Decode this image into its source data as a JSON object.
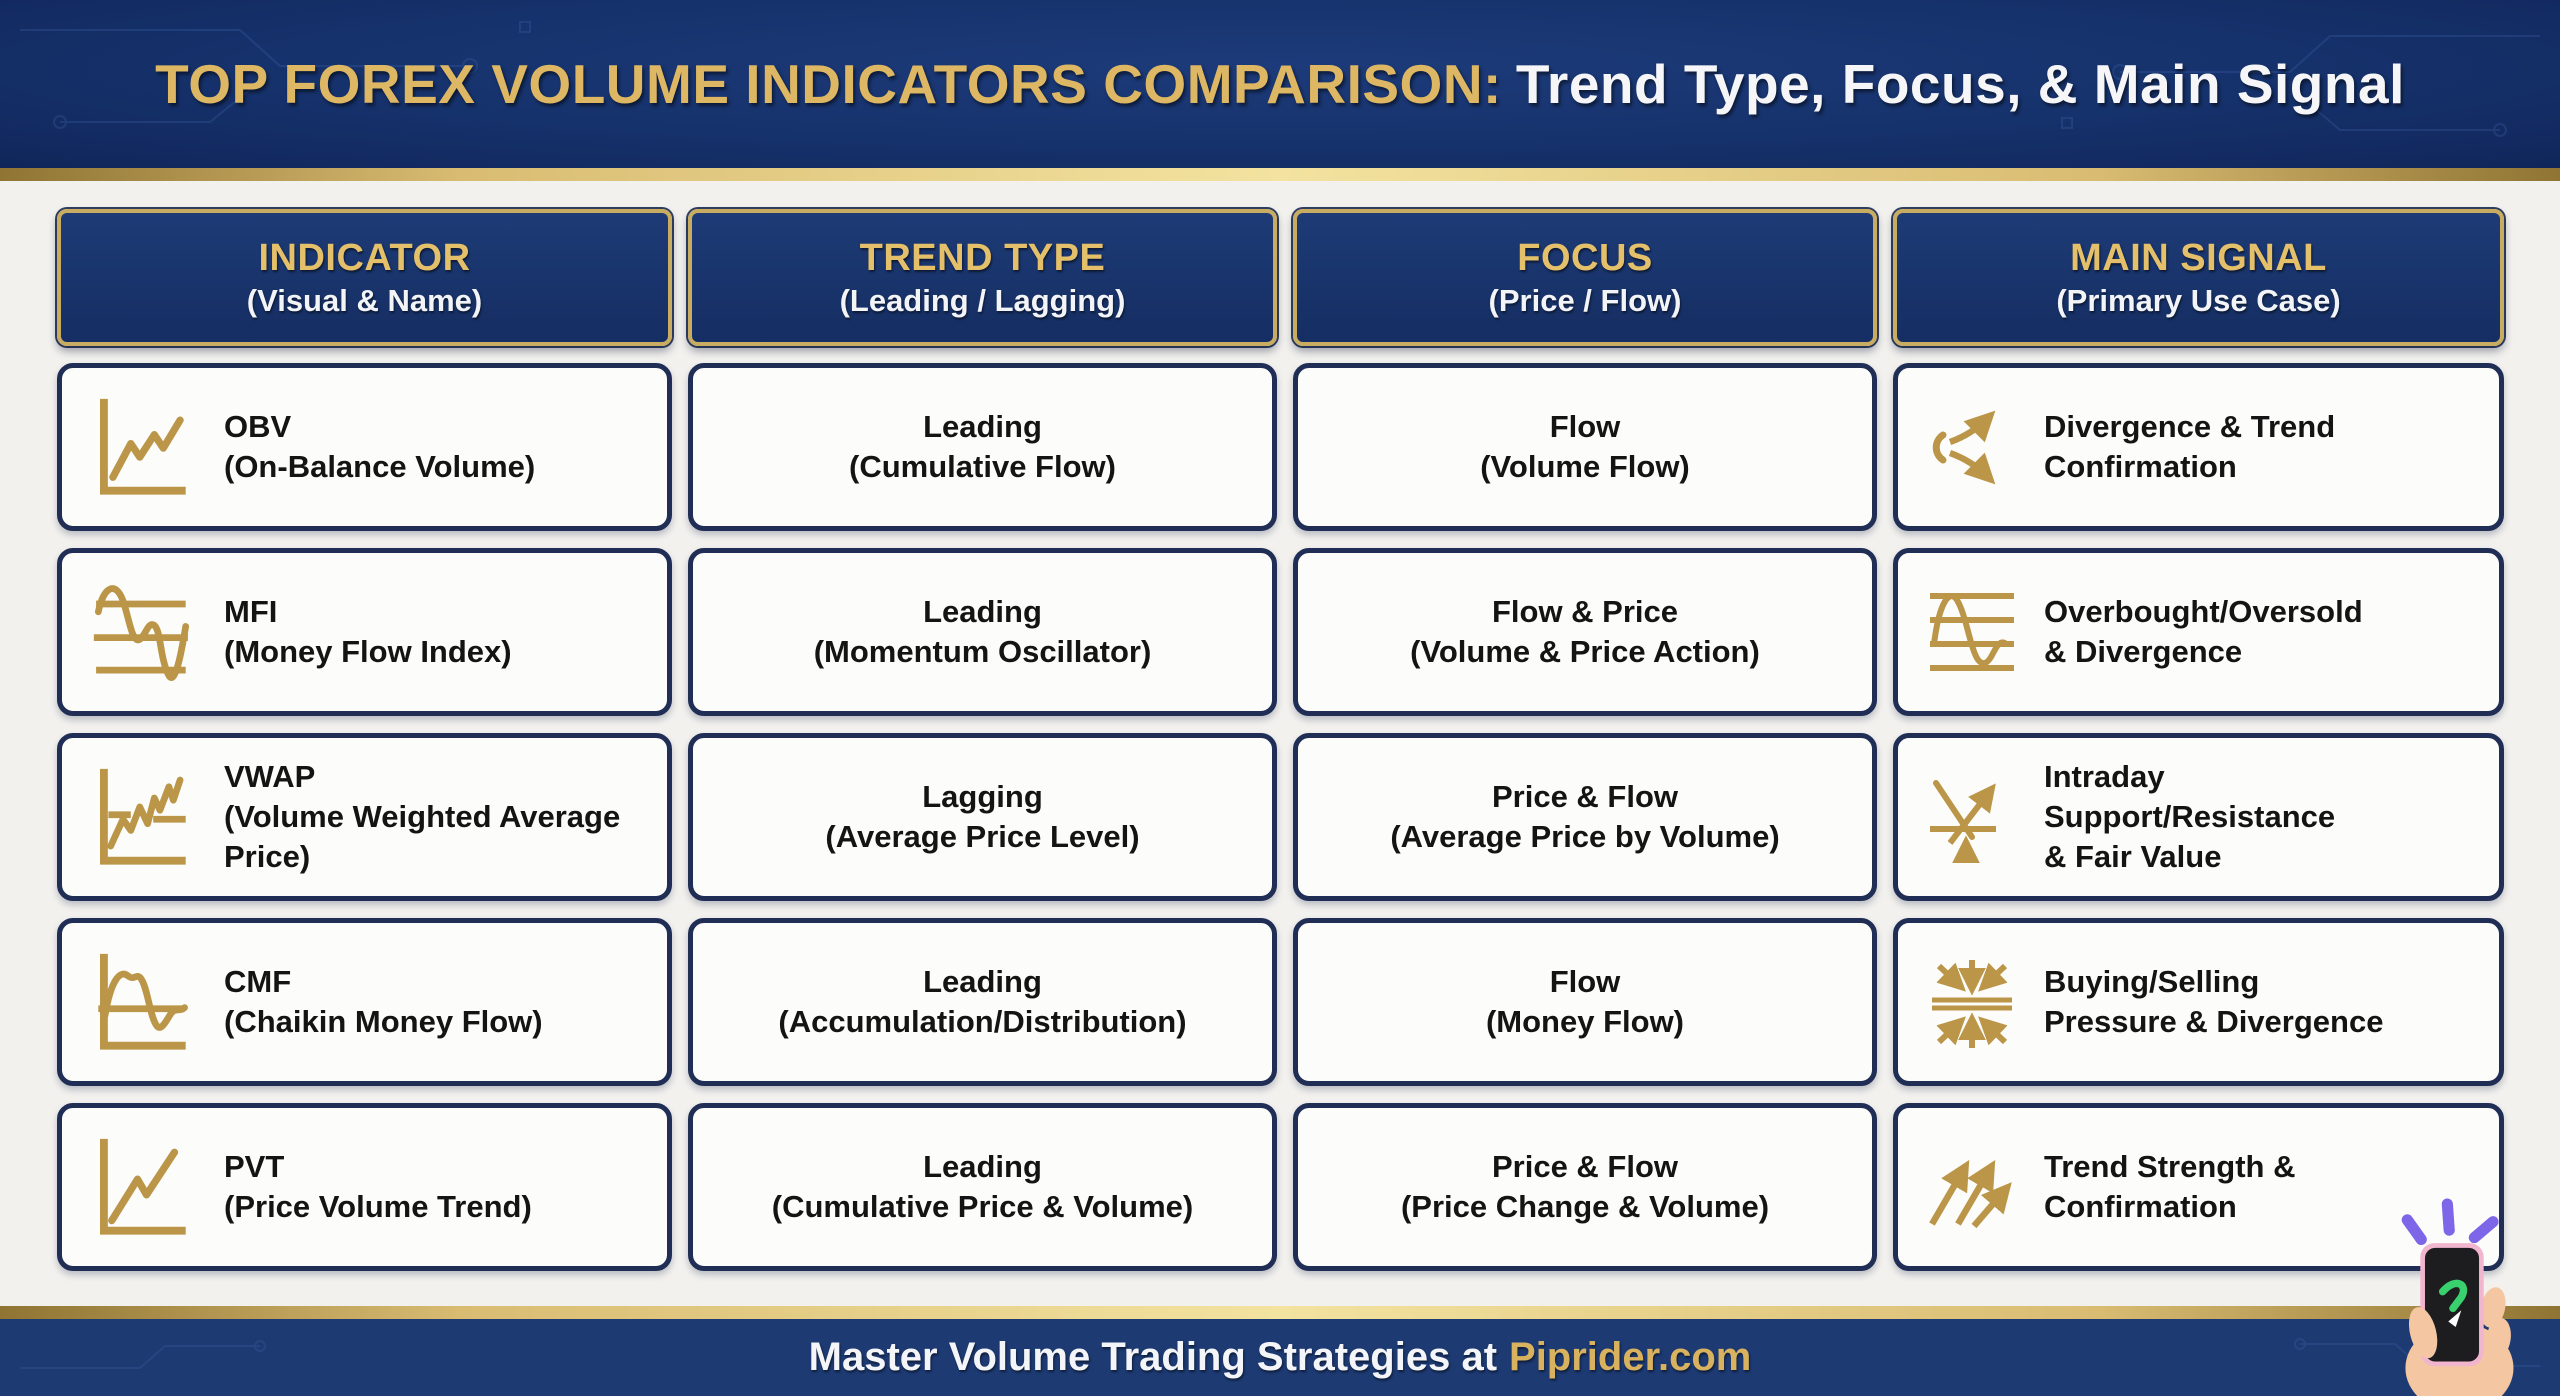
{
  "title": {
    "highlight": "TOP FOREX VOLUME INDICATORS COMPARISON:",
    "tail": "Trend Type, Focus, & Main Signal"
  },
  "columns": [
    {
      "title": "INDICATOR",
      "subtitle": "(Visual & Name)"
    },
    {
      "title": "TREND TYPE",
      "subtitle": "(Leading / Lagging)"
    },
    {
      "title": "FOCUS",
      "subtitle": "(Price / Flow)"
    },
    {
      "title": "MAIN SIGNAL",
      "subtitle": "(Primary Use Case)"
    }
  ],
  "rows": [
    {
      "indicator": {
        "icon": "obv-line-chart-icon",
        "name": "OBV",
        "full_name": "(On-Balance Volume)"
      },
      "trend": {
        "type": "Leading",
        "detail": "(Cumulative Flow)"
      },
      "focus": {
        "type": "Flow",
        "detail": "(Volume Flow)"
      },
      "signal": {
        "icon": "diverging-arrows-icon",
        "lines": [
          "Divergence & Trend",
          "Confirmation"
        ]
      }
    },
    {
      "indicator": {
        "icon": "oscillator-bands-icon",
        "name": "MFI",
        "full_name": "(Money Flow Index)"
      },
      "trend": {
        "type": "Leading",
        "detail": "(Momentum Oscillator)"
      },
      "focus": {
        "type": "Flow & Price",
        "detail": "(Volume & Price Action)"
      },
      "signal": {
        "icon": "sine-wave-bands-icon",
        "lines": [
          "Overbought/Oversold",
          "& Divergence"
        ]
      }
    },
    {
      "indicator": {
        "icon": "vwap-chart-icon",
        "name": "VWAP",
        "full_name": "(Volume Weighted Average Price)"
      },
      "trend": {
        "type": "Lagging",
        "detail": "(Average Price Level)"
      },
      "focus": {
        "type": "Price & Flow",
        "detail": "(Average Price by Volume)"
      },
      "signal": {
        "icon": "support-resistance-arrow-icon",
        "lines": [
          "Intraday",
          "Support/Resistance",
          "& Fair Value"
        ]
      }
    },
    {
      "indicator": {
        "icon": "cmf-wave-chart-icon",
        "name": "CMF",
        "full_name": "(Chaikin Money Flow)"
      },
      "trend": {
        "type": "Leading",
        "detail": "(Accumulation/Distribution)"
      },
      "focus": {
        "type": "Flow",
        "detail": "(Money Flow)"
      },
      "signal": {
        "icon": "converging-pressure-arrows-icon",
        "lines": [
          "Buying/Selling",
          "Pressure & Divergence"
        ]
      }
    },
    {
      "indicator": {
        "icon": "pvt-trend-chart-icon",
        "name": "PVT",
        "full_name": "(Price Volume Trend)"
      },
      "trend": {
        "type": "Leading",
        "detail": "(Cumulative Price & Volume)"
      },
      "focus": {
        "type": "Price & Flow",
        "detail": "(Price Change & Volume)"
      },
      "signal": {
        "icon": "double-rising-arrows-icon",
        "lines": [
          "Trend Strength &",
          "Confirmation"
        ]
      }
    }
  ],
  "footer": {
    "text": "Master Volume Trading Strategies at",
    "brand": "Piprider.com"
  },
  "colors": {
    "banner_navy": "#16326c",
    "gold_text": "#ddb763",
    "gold_border": "#c8ac62",
    "cell_border": "#202e56",
    "cell_bg": "#fcfcfa",
    "body_text": "#141414",
    "icon_gold": "#bb9648",
    "footer_navy": "#1d3a73",
    "ray_purple": "#7d66e8",
    "logo_green": "#39d06e",
    "phone_pink": "#f1b5cd"
  },
  "chart_data": {
    "type": "table",
    "title": "TOP FOREX VOLUME INDICATORS COMPARISON: Trend Type, Focus, & Main Signal",
    "columns": [
      "INDICATOR (Visual & Name)",
      "TREND TYPE (Leading / Lagging)",
      "FOCUS (Price / Flow)",
      "MAIN SIGNAL (Primary Use Case)"
    ],
    "rows": [
      [
        "OBV (On-Balance Volume)",
        "Leading (Cumulative Flow)",
        "Flow (Volume Flow)",
        "Divergence & Trend Confirmation"
      ],
      [
        "MFI (Money Flow Index)",
        "Leading (Momentum Oscillator)",
        "Flow & Price (Volume & Price Action)",
        "Overbought/Oversold & Divergence"
      ],
      [
        "VWAP (Volume Weighted Average Price)",
        "Lagging (Average Price Level)",
        "Price & Flow (Average Price by Volume)",
        "Intraday Support/Resistance & Fair Value"
      ],
      [
        "CMF (Chaikin Money Flow)",
        "Leading (Accumulation/Distribution)",
        "Flow (Money Flow)",
        "Buying/Selling Pressure & Divergence"
      ],
      [
        "PVT (Price Volume Trend)",
        "Leading (Cumulative Price & Volume)",
        "Price & Flow (Price Change & Volume)",
        "Trend Strength & Confirmation"
      ]
    ]
  }
}
